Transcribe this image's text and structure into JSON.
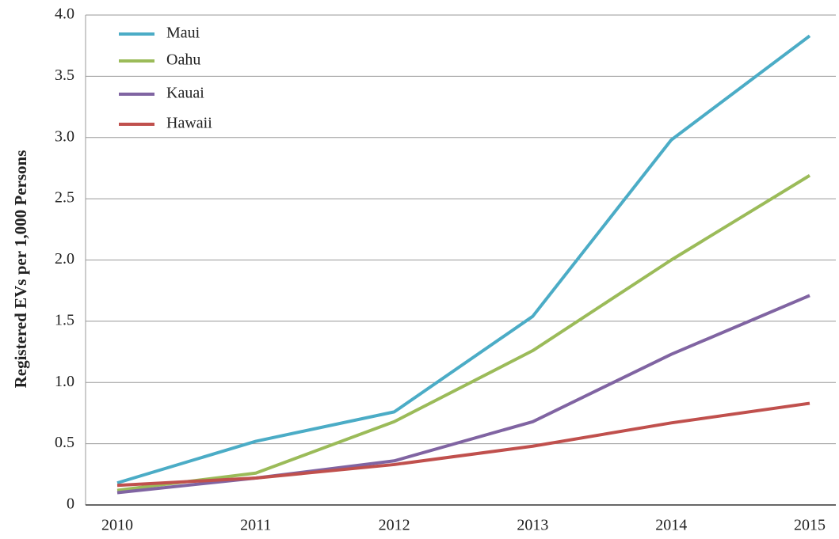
{
  "chart_data": {
    "type": "line",
    "ylabel": "Registered EVs per 1,000 Persons",
    "categories": [
      "2010",
      "2011",
      "2012",
      "2013",
      "2014",
      "2015"
    ],
    "series": [
      {
        "name": "Maui",
        "color": "#4bacc6",
        "values": [
          0.18,
          0.52,
          0.76,
          1.54,
          2.98,
          3.83
        ]
      },
      {
        "name": "Oahu",
        "color": "#9bbb59",
        "values": [
          0.12,
          0.26,
          0.68,
          1.26,
          2.0,
          2.69
        ]
      },
      {
        "name": "Kauai",
        "color": "#8064a2",
        "values": [
          0.1,
          0.22,
          0.36,
          0.68,
          1.23,
          1.71
        ]
      },
      {
        "name": "Hawaii",
        "color": "#c0504d",
        "values": [
          0.16,
          0.22,
          0.33,
          0.48,
          0.67,
          0.83
        ]
      }
    ],
    "ylim": [
      0,
      4
    ],
    "yticks": [
      0,
      0.5,
      {
        "value": 1,
        "label": "1.0"
      },
      1.5,
      {
        "value": 2,
        "label": "2.0"
      },
      2.5,
      {
        "value": 3,
        "label": "3.0"
      },
      3.5,
      {
        "value": 4,
        "label": "4.0"
      }
    ],
    "grid": true,
    "legend": "upper left"
  }
}
